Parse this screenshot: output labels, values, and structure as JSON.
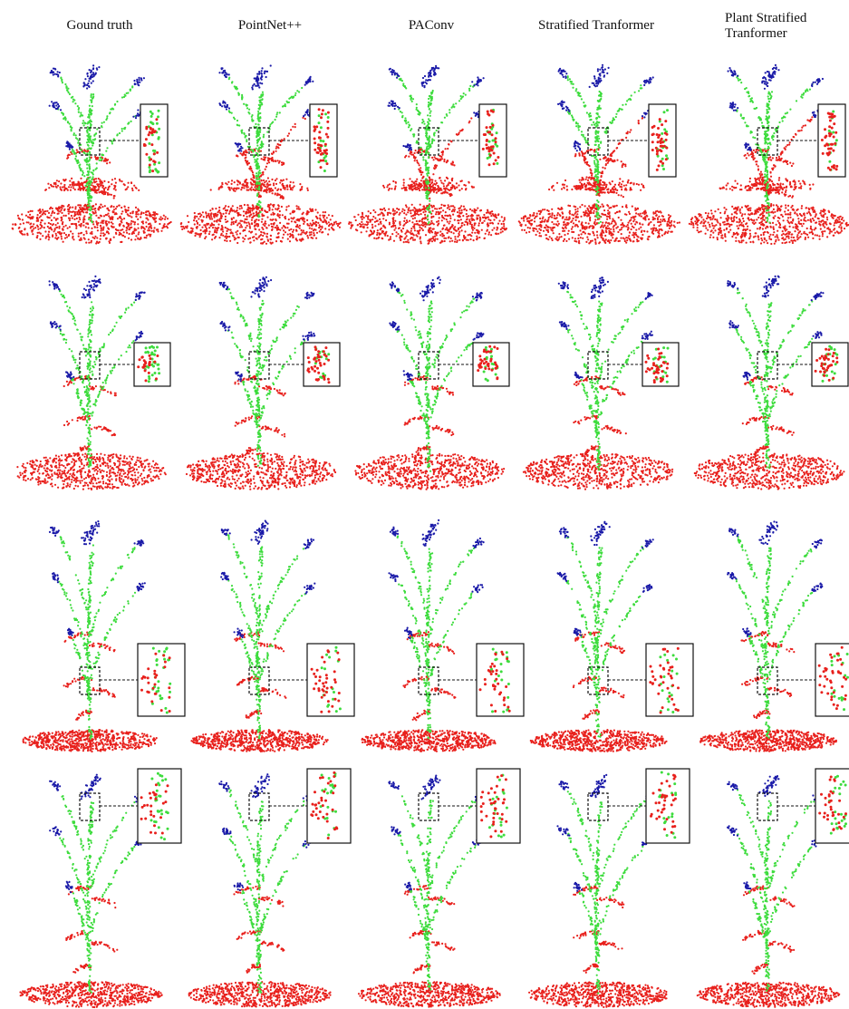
{
  "header": {
    "columns": [
      "Gound truth",
      "PointNet++",
      "PAConv",
      "Stratified Tranformer",
      "Plant Stratified Tranformer"
    ]
  }
}
